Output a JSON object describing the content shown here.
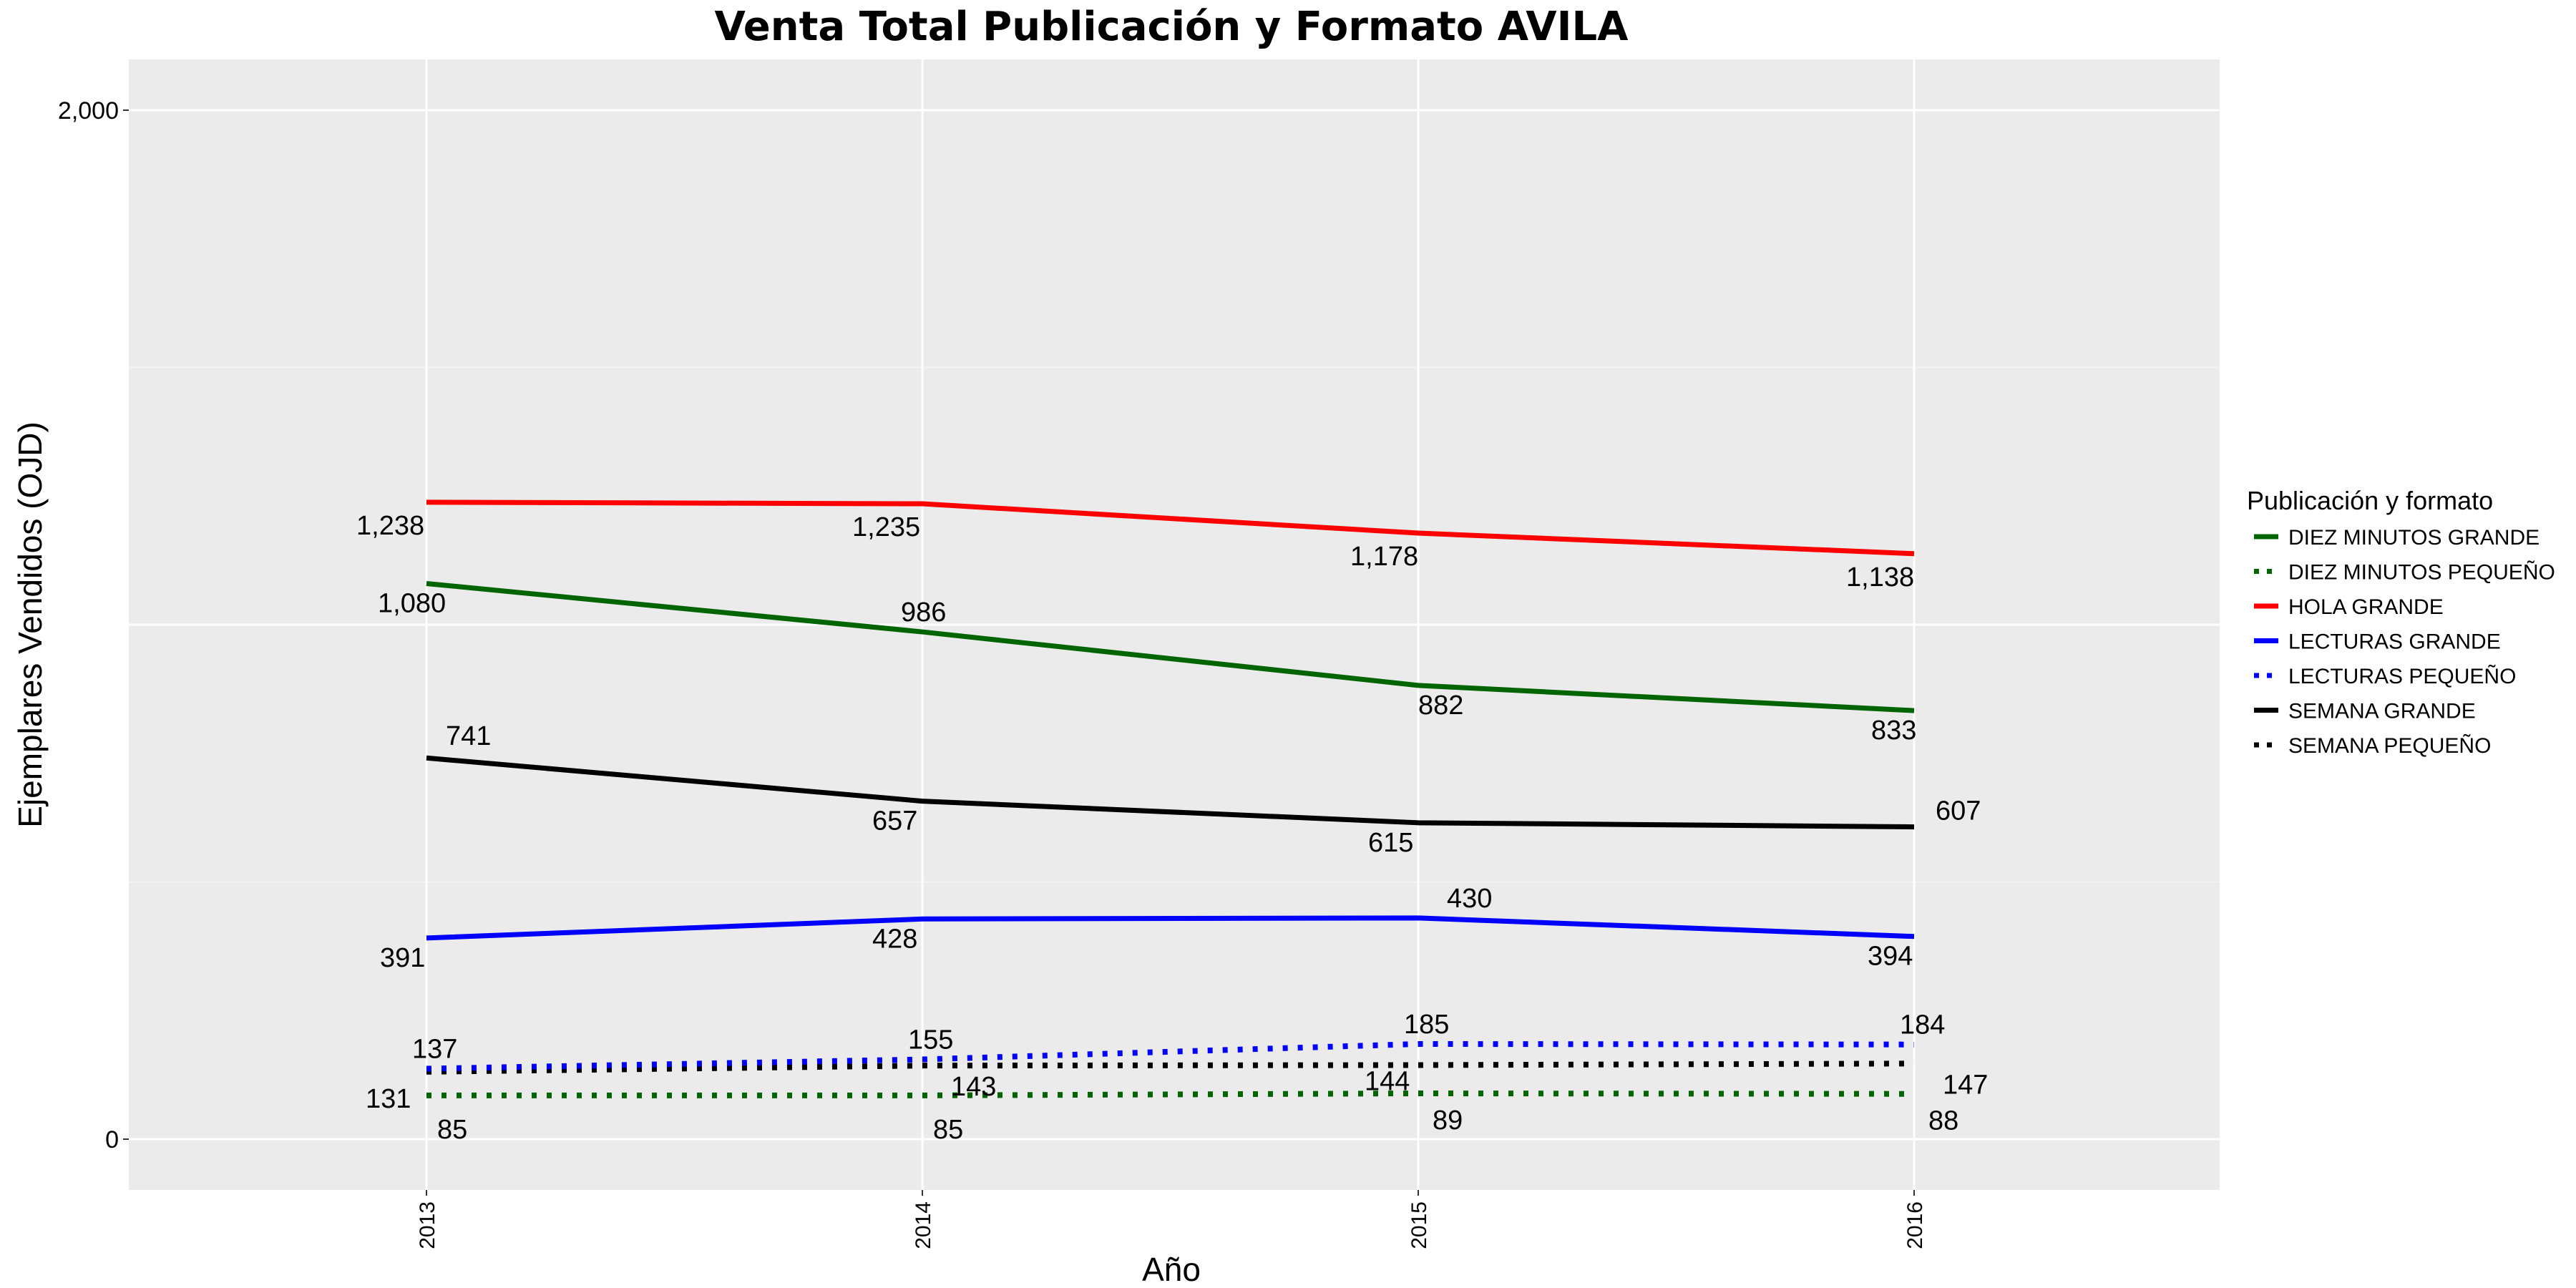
{
  "chart_data": {
    "type": "line",
    "title": "Venta Total Publicación y Formato  AVILA",
    "xlabel": "Año",
    "ylabel": "Ejemplares Vendidos (OJD)",
    "x": [
      "2013",
      "2014",
      "2015",
      "2016"
    ],
    "ylim": [
      0,
      2000
    ],
    "yticks": [
      {
        "value": 0,
        "label": "0"
      },
      {
        "value": 2000,
        "label": "2,000"
      }
    ],
    "grid": true,
    "legend": {
      "title": "Publicación y formato",
      "position": "right"
    },
    "series": [
      {
        "name": "DIEZ MINUTOS GRANDE",
        "color": "#006400",
        "style": "solid",
        "values": [
          1080,
          986,
          882,
          833
        ],
        "labels": [
          "1,080",
          "986",
          "882",
          "833"
        ]
      },
      {
        "name": "DIEZ MINUTOS PEQUEÑO",
        "color": "#006400",
        "style": "dotted",
        "values": [
          85,
          85,
          89,
          88
        ],
        "labels": [
          "85",
          "85",
          "89",
          "88"
        ]
      },
      {
        "name": "HOLA GRANDE",
        "color": "#ff0000",
        "style": "solid",
        "values": [
          1238,
          1235,
          1178,
          1138
        ],
        "labels": [
          "1,238",
          "1,235",
          "1,178",
          "1,138"
        ]
      },
      {
        "name": "LECTURAS GRANDE",
        "color": "#0000ff",
        "style": "solid",
        "values": [
          391,
          428,
          430,
          394
        ],
        "labels": [
          "391",
          "428",
          "430",
          "394"
        ]
      },
      {
        "name": "LECTURAS PEQUEÑO",
        "color": "#0000ff",
        "style": "dotted",
        "values": [
          137,
          155,
          185,
          184
        ],
        "labels": [
          "137",
          "155",
          "185",
          "184"
        ]
      },
      {
        "name": "SEMANA GRANDE",
        "color": "#000000",
        "style": "solid",
        "values": [
          741,
          657,
          615,
          607
        ],
        "labels": [
          "741",
          "657",
          "615",
          "607"
        ]
      },
      {
        "name": "SEMANA PEQUEÑO",
        "color": "#000000",
        "style": "dotted",
        "values": [
          131,
          143,
          144,
          147
        ],
        "labels": [
          "131",
          "143",
          "144",
          "147"
        ]
      }
    ]
  }
}
